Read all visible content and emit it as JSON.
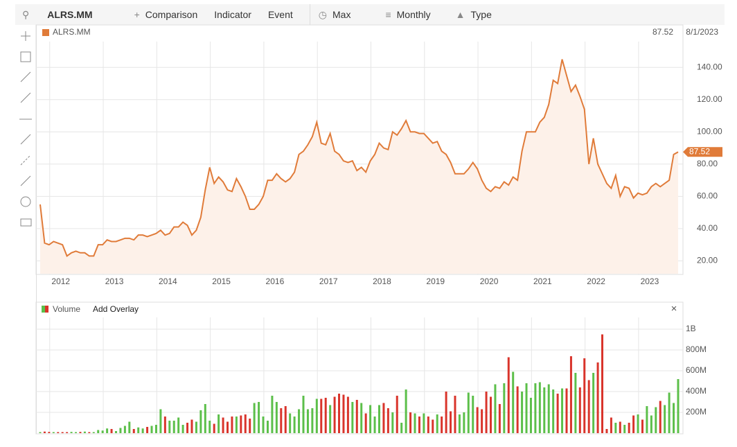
{
  "toolbar": {
    "symbol": "ALRS.MM",
    "comparison": "Comparison",
    "indicator": "Indicator",
    "event": "Event",
    "range": "Max",
    "interval": "Monthly",
    "chart_type": "Type"
  },
  "chart_data": [
    {
      "type": "line",
      "series": [
        {
          "name": "ALRS.MM",
          "color": "#e07b39",
          "fill": "#fdf1e9",
          "values": [
            55,
            31,
            30,
            32,
            31,
            30,
            23,
            25,
            26,
            25,
            25,
            23,
            23,
            30,
            30,
            33,
            32,
            32,
            33,
            34,
            34,
            33,
            36,
            36,
            35,
            36,
            37,
            39,
            36,
            37,
            41,
            41,
            44,
            42,
            36,
            39,
            47,
            64,
            78,
            68,
            72,
            69,
            64,
            63,
            71,
            66,
            60,
            52,
            52,
            55,
            60,
            70,
            70,
            74,
            71,
            69,
            71,
            75,
            86,
            88,
            92,
            97,
            106,
            93,
            92,
            99,
            88,
            86,
            82,
            81,
            82,
            76,
            78,
            75,
            82,
            86,
            93,
            90,
            89,
            100,
            98,
            102,
            107,
            100,
            100,
            99,
            99,
            96,
            93,
            94,
            88,
            86,
            81,
            74,
            74,
            74,
            77,
            81,
            77,
            70,
            65,
            63,
            66,
            65,
            69,
            67,
            72,
            70,
            88,
            100,
            100,
            100,
            106,
            109,
            117,
            132,
            130,
            145,
            135,
            125,
            129,
            122,
            114,
            80,
            96,
            80,
            74,
            68,
            65,
            73,
            60,
            66,
            65,
            59,
            62,
            61,
            62,
            66,
            68,
            66,
            68,
            70,
            86,
            87.52
          ]
        }
      ],
      "categories": [
        null,
        null,
        null,
        null,
        "2012",
        null,
        null,
        null,
        null,
        null,
        null,
        null,
        null,
        null,
        null,
        null,
        "2013",
        null,
        null,
        null,
        null,
        null,
        null,
        null,
        null,
        null,
        null,
        null,
        "2014",
        null,
        null,
        null,
        null,
        null,
        null,
        null,
        null,
        null,
        null,
        null,
        "2015",
        null,
        null,
        null,
        null,
        null,
        null,
        null,
        null,
        null,
        null,
        null,
        "2016",
        null,
        null,
        null,
        null,
        null,
        null,
        null,
        null,
        null,
        null,
        null,
        "2017",
        null,
        null,
        null,
        null,
        null,
        null,
        null,
        null,
        null,
        null,
        null,
        "2018",
        null,
        null,
        null,
        null,
        null,
        null,
        null,
        null,
        null,
        null,
        null,
        "2019",
        null,
        null,
        null,
        null,
        null,
        null,
        null,
        null,
        null,
        null,
        null,
        "2020",
        null,
        null,
        null,
        null,
        null,
        null,
        null,
        null,
        null,
        null,
        null,
        "2021",
        null,
        null,
        null,
        null,
        null,
        null,
        null,
        null,
        null,
        null,
        null,
        "2022",
        null,
        null,
        null,
        null,
        null,
        null,
        null,
        null,
        null,
        null,
        null,
        "2023",
        null,
        null,
        null,
        null,
        null,
        null,
        null
      ],
      "last_date": "8/1/2023",
      "ylim": [
        12,
        156
      ],
      "yticks": [
        {
          "value": 20,
          "label": "20.00"
        },
        {
          "value": 40,
          "label": "40.00"
        },
        {
          "value": 60,
          "label": "60.00"
        },
        {
          "value": 80,
          "label": "80.00"
        },
        {
          "value": 100,
          "label": "100.00"
        },
        {
          "value": 120,
          "label": "120.00"
        },
        {
          "value": 140,
          "label": "140.00"
        }
      ],
      "grid": true
    },
    {
      "type": "bar",
      "title": "Volume",
      "overlay_button": "Add Overlay",
      "up_color": "#5cbf4a",
      "down_color": "#d9342b",
      "values": [
        10,
        15,
        12,
        10,
        10,
        10,
        10,
        12,
        10,
        12,
        15,
        10,
        10,
        30,
        25,
        45,
        40,
        20,
        50,
        70,
        110,
        40,
        55,
        45,
        60,
        70,
        80,
        230,
        160,
        120,
        120,
        150,
        80,
        100,
        130,
        110,
        220,
        280,
        120,
        90,
        180,
        150,
        110,
        160,
        160,
        170,
        180,
        140,
        290,
        300,
        160,
        120,
        360,
        300,
        240,
        260,
        190,
        160,
        230,
        360,
        230,
        240,
        330,
        330,
        340,
        270,
        350,
        380,
        370,
        350,
        300,
        320,
        290,
        190,
        270,
        160,
        270,
        290,
        240,
        200,
        360,
        100,
        420,
        200,
        190,
        160,
        190,
        160,
        130,
        180,
        160,
        400,
        210,
        360,
        180,
        200,
        390,
        360,
        250,
        230,
        400,
        350,
        470,
        280,
        480,
        730,
        590,
        450,
        400,
        480,
        340,
        480,
        490,
        440,
        470,
        420,
        380,
        430,
        430,
        740,
        580,
        440,
        720,
        510,
        580,
        680,
        950,
        40,
        150,
        100,
        110,
        80,
        100,
        170,
        180,
        130,
        260,
        170,
        250,
        310,
        270,
        390,
        290,
        520
      ],
      "ylim": [
        0,
        1100
      ],
      "yticks": [
        {
          "value": 200,
          "label": "200M"
        },
        {
          "value": 400,
          "label": "400M"
        },
        {
          "value": 600,
          "label": "600M"
        },
        {
          "value": 800,
          "label": "800M"
        },
        {
          "value": 1000,
          "label": "1B"
        }
      ],
      "grid": true
    }
  ]
}
